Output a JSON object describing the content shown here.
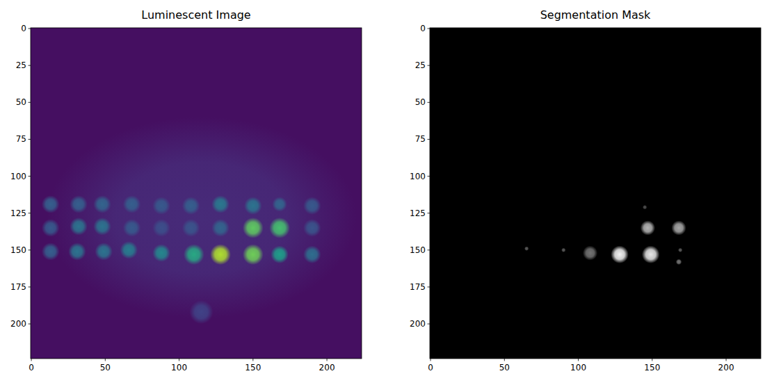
{
  "chart_data": [
    {
      "type": "image",
      "title": "Luminescent Image",
      "color": "viridis",
      "xlim": [
        -0.5,
        223.5
      ],
      "ylim": [
        223.5,
        -0.5
      ],
      "xticks": [
        0,
        50,
        100,
        150,
        200
      ],
      "yticks": [
        0,
        25,
        50,
        75,
        100,
        125,
        150,
        175,
        200
      ],
      "background": 0.04,
      "spots": [
        {
          "x": 115,
          "y": 128,
          "radius": 105,
          "intensity": 0.12
        },
        {
          "x": 13,
          "y": 119,
          "radius": 6,
          "intensity": 0.3
        },
        {
          "x": 32,
          "y": 119,
          "radius": 6,
          "intensity": 0.3
        },
        {
          "x": 48,
          "y": 119,
          "radius": 6,
          "intensity": 0.32
        },
        {
          "x": 68,
          "y": 119,
          "radius": 6,
          "intensity": 0.3
        },
        {
          "x": 88,
          "y": 120,
          "radius": 6,
          "intensity": 0.28
        },
        {
          "x": 108,
          "y": 120,
          "radius": 6,
          "intensity": 0.3
        },
        {
          "x": 128,
          "y": 119,
          "radius": 6,
          "intensity": 0.4
        },
        {
          "x": 150,
          "y": 120,
          "radius": 6,
          "intensity": 0.38
        },
        {
          "x": 168,
          "y": 119,
          "radius": 5,
          "intensity": 0.32
        },
        {
          "x": 190,
          "y": 120,
          "radius": 6,
          "intensity": 0.28
        },
        {
          "x": 13,
          "y": 135,
          "radius": 6,
          "intensity": 0.28
        },
        {
          "x": 32,
          "y": 134,
          "radius": 6,
          "intensity": 0.38
        },
        {
          "x": 48,
          "y": 134,
          "radius": 6,
          "intensity": 0.38
        },
        {
          "x": 68,
          "y": 135,
          "radius": 6,
          "intensity": 0.28
        },
        {
          "x": 88,
          "y": 135,
          "radius": 6,
          "intensity": 0.24
        },
        {
          "x": 108,
          "y": 135,
          "radius": 6,
          "intensity": 0.26
        },
        {
          "x": 128,
          "y": 135,
          "radius": 6,
          "intensity": 0.32
        },
        {
          "x": 150,
          "y": 135,
          "radius": 7,
          "intensity": 0.75
        },
        {
          "x": 168,
          "y": 135,
          "radius": 7,
          "intensity": 0.7
        },
        {
          "x": 190,
          "y": 135,
          "radius": 6,
          "intensity": 0.26
        },
        {
          "x": 13,
          "y": 151,
          "radius": 6,
          "intensity": 0.3
        },
        {
          "x": 31,
          "y": 151,
          "radius": 6,
          "intensity": 0.38
        },
        {
          "x": 49,
          "y": 151,
          "radius": 6,
          "intensity": 0.38
        },
        {
          "x": 66,
          "y": 150,
          "radius": 6,
          "intensity": 0.42
        },
        {
          "x": 88,
          "y": 152,
          "radius": 6,
          "intensity": 0.46
        },
        {
          "x": 110,
          "y": 153,
          "radius": 7,
          "intensity": 0.6
        },
        {
          "x": 128,
          "y": 153,
          "radius": 7,
          "intensity": 0.88
        },
        {
          "x": 150,
          "y": 153,
          "radius": 7,
          "intensity": 0.78
        },
        {
          "x": 168,
          "y": 153,
          "radius": 6,
          "intensity": 0.55
        },
        {
          "x": 190,
          "y": 153,
          "radius": 6,
          "intensity": 0.36
        },
        {
          "x": 115,
          "y": 192,
          "radius": 8,
          "intensity": 0.2
        }
      ]
    },
    {
      "type": "image",
      "title": "Segmentation Mask",
      "color": "gray",
      "xlim": [
        -0.5,
        223.5
      ],
      "ylim": [
        223.5,
        -0.5
      ],
      "xticks": [
        0,
        50,
        100,
        150,
        200
      ],
      "yticks": [
        0,
        25,
        50,
        75,
        100,
        125,
        150,
        175,
        200
      ],
      "background": 0,
      "spots": [
        {
          "x": 147,
          "y": 135,
          "radius": 5,
          "intensity": 0.7
        },
        {
          "x": 168,
          "y": 135,
          "radius": 5,
          "intensity": 0.65
        },
        {
          "x": 108,
          "y": 152,
          "radius": 5,
          "intensity": 0.45
        },
        {
          "x": 128,
          "y": 153,
          "radius": 6,
          "intensity": 0.95
        },
        {
          "x": 149,
          "y": 153,
          "radius": 6,
          "intensity": 0.9
        },
        {
          "x": 65,
          "y": 149,
          "radius": 1.5,
          "intensity": 0.35
        },
        {
          "x": 90,
          "y": 150,
          "radius": 1.5,
          "intensity": 0.35
        },
        {
          "x": 169,
          "y": 150,
          "radius": 1.5,
          "intensity": 0.35
        },
        {
          "x": 168,
          "y": 158,
          "radius": 2,
          "intensity": 0.45
        },
        {
          "x": 145,
          "y": 121,
          "radius": 1.5,
          "intensity": 0.3
        }
      ]
    }
  ]
}
